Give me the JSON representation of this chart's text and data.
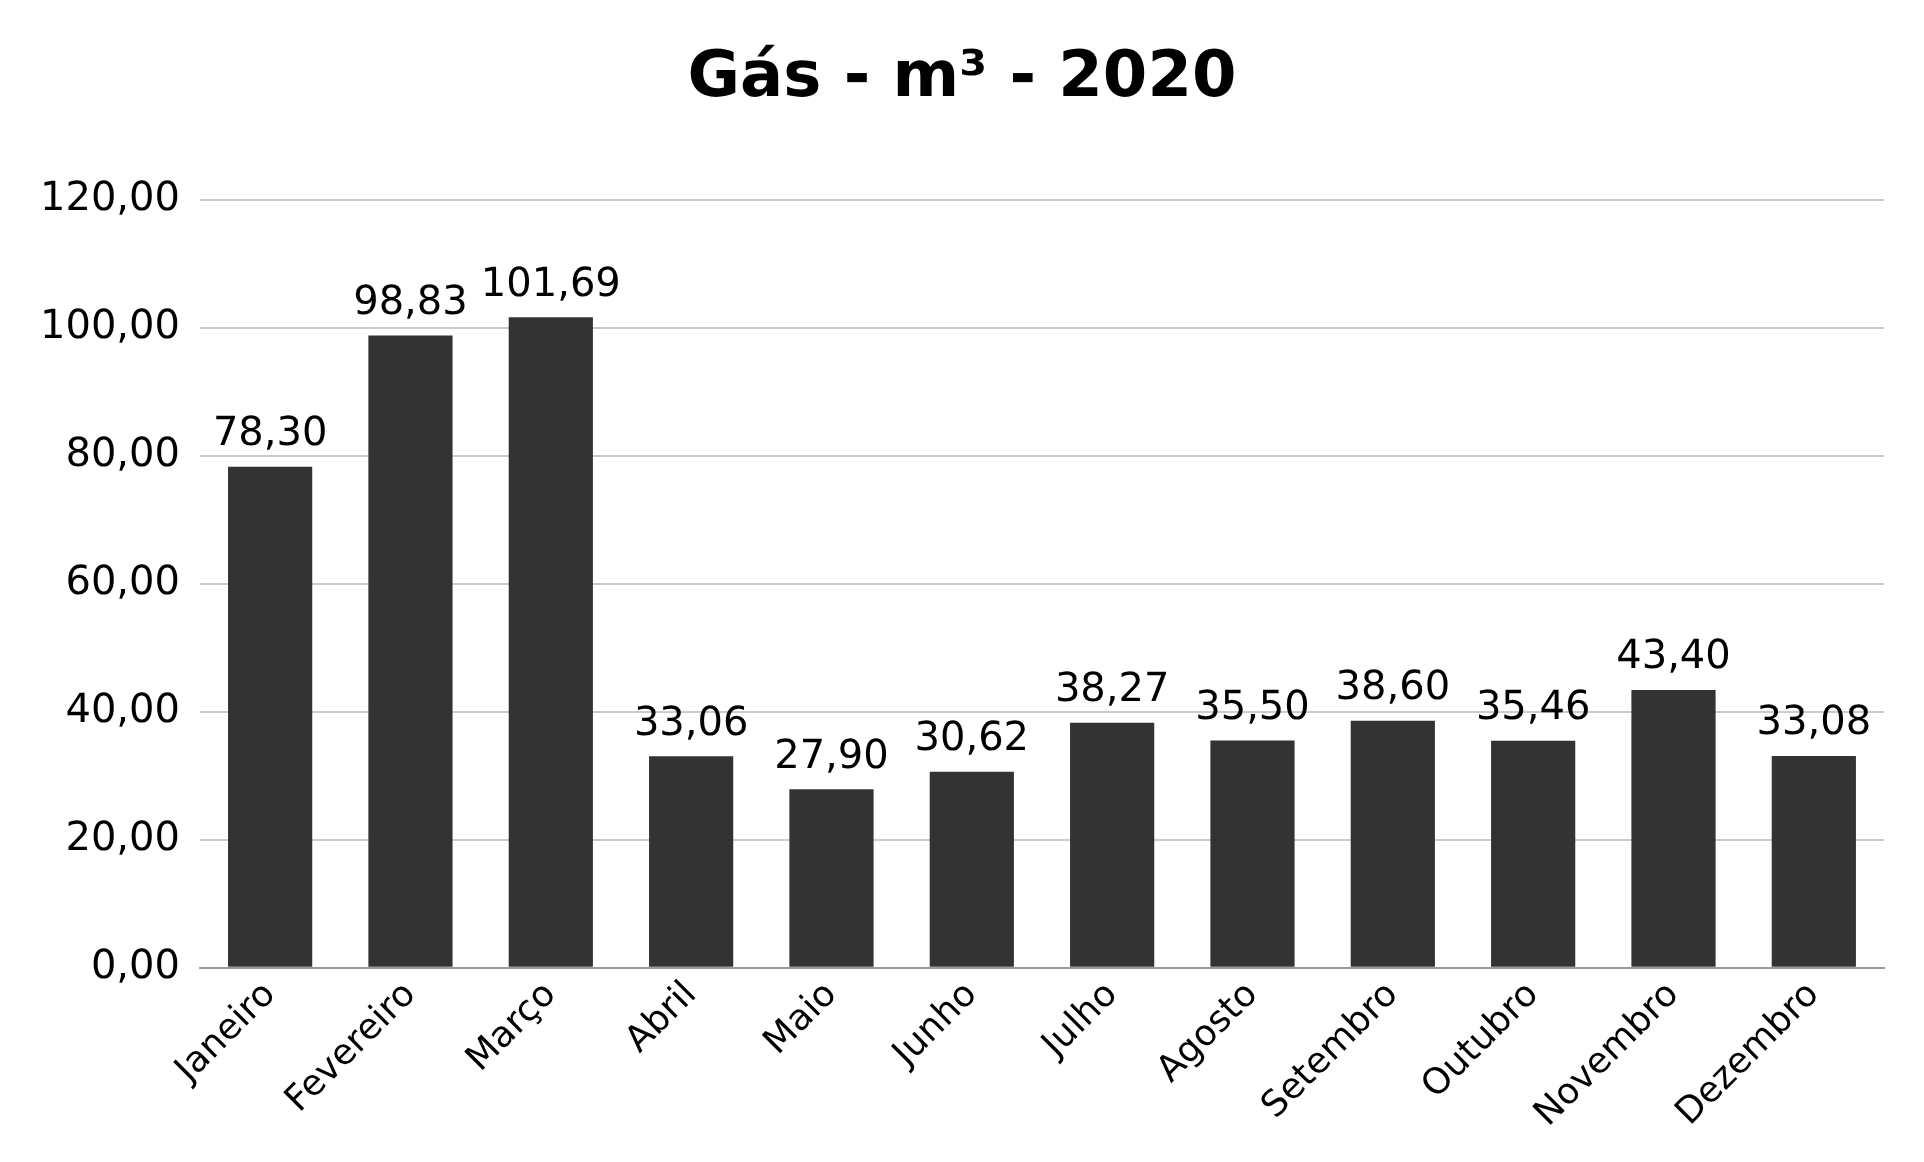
{
  "chart_data": {
    "type": "bar",
    "title": "Gás - m³ - 2020",
    "categories": [
      "Janeiro",
      "Fevereiro",
      "Março",
      "Abril",
      "Maio",
      "Junho",
      "Julho",
      "Agosto",
      "Setembro",
      "Outubro",
      "Novembro",
      "Dezembro"
    ],
    "values": [
      78.3,
      98.83,
      101.69,
      33.06,
      27.9,
      30.62,
      38.27,
      35.5,
      38.6,
      35.46,
      43.4,
      33.08
    ],
    "value_labels": [
      "78,30",
      "98,83",
      "101,69",
      "33,06",
      "27,90",
      "30,62",
      "38,27",
      "35,50",
      "38,60",
      "35,46",
      "43,40",
      "33,08"
    ],
    "color": "#333333",
    "ylim": [
      0,
      120
    ],
    "yticks": [
      {
        "value": 0,
        "label": "0,00"
      },
      {
        "value": 20,
        "label": "20,00"
      },
      {
        "value": 40,
        "label": "40,00"
      },
      {
        "value": 60,
        "label": "60,00"
      },
      {
        "value": 80,
        "label": "80,00"
      },
      {
        "value": 100,
        "label": "100,00"
      },
      {
        "value": 120,
        "label": "120,00"
      }
    ],
    "grid": "y",
    "legend": false
  }
}
